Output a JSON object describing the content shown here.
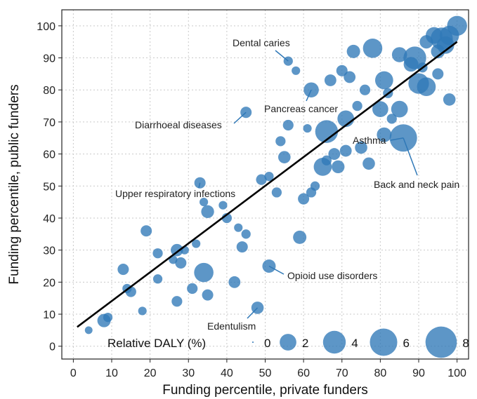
{
  "chart_data": {
    "type": "scatter",
    "xlabel": "Funding percentile, private funders",
    "ylabel": "Funding percentile, public funders",
    "xlim": [
      -3,
      103
    ],
    "ylim": [
      -4,
      105
    ],
    "xticks": [
      0,
      10,
      20,
      30,
      40,
      50,
      60,
      70,
      80,
      90,
      100
    ],
    "yticks": [
      0,
      10,
      20,
      30,
      40,
      50,
      60,
      70,
      80,
      90,
      100
    ],
    "grid": true,
    "point_color": "#2f78b7",
    "fit_line": {
      "x": [
        1,
        100
      ],
      "y": [
        6,
        95
      ]
    },
    "points": [
      {
        "x": 100,
        "y": 100,
        "daly": 3.0
      },
      {
        "x": 98,
        "y": 97,
        "daly": 2.8
      },
      {
        "x": 96,
        "y": 96,
        "daly": 3.8
      },
      {
        "x": 94,
        "y": 97,
        "daly": 2.0
      },
      {
        "x": 97,
        "y": 94,
        "daly": 2.2
      },
      {
        "x": 95,
        "y": 92,
        "daly": 1.3
      },
      {
        "x": 92,
        "y": 95,
        "daly": 1.2
      },
      {
        "x": 89,
        "y": 90,
        "daly": 4.0
      },
      {
        "x": 88,
        "y": 88,
        "daly": 1.5
      },
      {
        "x": 85,
        "y": 91,
        "daly": 1.6
      },
      {
        "x": 78,
        "y": 93,
        "daly": 2.8
      },
      {
        "x": 73,
        "y": 92,
        "daly": 1.2
      },
      {
        "x": 81,
        "y": 83,
        "daly": 2.4
      },
      {
        "x": 90,
        "y": 82,
        "daly": 3.2
      },
      {
        "x": 92,
        "y": 81,
        "daly": 2.6
      },
      {
        "x": 91,
        "y": 87,
        "daly": 0.6
      },
      {
        "x": 95,
        "y": 85,
        "daly": 0.8
      },
      {
        "x": 98,
        "y": 77,
        "daly": 1.0
      },
      {
        "x": 70,
        "y": 86,
        "daly": 0.8
      },
      {
        "x": 72,
        "y": 84,
        "daly": 0.9
      },
      {
        "x": 67,
        "y": 83,
        "daly": 0.9
      },
      {
        "x": 62,
        "y": 80,
        "daly": 1.6
      },
      {
        "x": 80,
        "y": 74,
        "daly": 1.8
      },
      {
        "x": 85,
        "y": 74,
        "daly": 2.0
      },
      {
        "x": 76,
        "y": 80,
        "daly": 0.7
      },
      {
        "x": 82,
        "y": 79,
        "daly": 0.6
      },
      {
        "x": 74,
        "y": 75,
        "daly": 0.6
      },
      {
        "x": 71,
        "y": 71,
        "daly": 2.0
      },
      {
        "x": 66,
        "y": 67,
        "daly": 4.0
      },
      {
        "x": 86,
        "y": 65,
        "daly": 6.0
      },
      {
        "x": 81,
        "y": 66,
        "daly": 1.5
      },
      {
        "x": 83,
        "y": 71,
        "daly": 0.6
      },
      {
        "x": 75,
        "y": 62,
        "daly": 1.0
      },
      {
        "x": 71,
        "y": 61,
        "daly": 0.9
      },
      {
        "x": 68,
        "y": 60,
        "daly": 0.9
      },
      {
        "x": 65,
        "y": 56,
        "daly": 2.4
      },
      {
        "x": 66,
        "y": 58,
        "daly": 0.6
      },
      {
        "x": 69,
        "y": 56,
        "daly": 1.1
      },
      {
        "x": 77,
        "y": 57,
        "daly": 1.0
      },
      {
        "x": 56,
        "y": 69,
        "daly": 0.7
      },
      {
        "x": 54,
        "y": 64,
        "daly": 0.6
      },
      {
        "x": 55,
        "y": 59,
        "daly": 1.0
      },
      {
        "x": 51,
        "y": 53,
        "daly": 0.5
      },
      {
        "x": 53,
        "y": 48,
        "daly": 0.6
      },
      {
        "x": 49,
        "y": 52,
        "daly": 0.7
      },
      {
        "x": 62,
        "y": 48,
        "daly": 0.6
      },
      {
        "x": 63,
        "y": 50,
        "daly": 0.5
      },
      {
        "x": 60,
        "y": 46,
        "daly": 0.8
      },
      {
        "x": 35,
        "y": 42,
        "daly": 1.1
      },
      {
        "x": 39,
        "y": 44,
        "daly": 0.4
      },
      {
        "x": 40,
        "y": 40,
        "daly": 0.6
      },
      {
        "x": 34,
        "y": 45,
        "daly": 0.4
      },
      {
        "x": 45,
        "y": 35,
        "daly": 0.5
      },
      {
        "x": 44,
        "y": 31,
        "daly": 0.8
      },
      {
        "x": 43,
        "y": 37,
        "daly": 0.4
      },
      {
        "x": 59,
        "y": 34,
        "daly": 1.2
      },
      {
        "x": 42,
        "y": 20,
        "daly": 0.9
      },
      {
        "x": 35,
        "y": 16,
        "daly": 0.8
      },
      {
        "x": 31,
        "y": 18,
        "daly": 0.7
      },
      {
        "x": 34,
        "y": 23,
        "daly": 2.8
      },
      {
        "x": 27,
        "y": 30,
        "daly": 1.0
      },
      {
        "x": 28,
        "y": 26,
        "daly": 0.8
      },
      {
        "x": 29,
        "y": 30,
        "daly": 0.4
      },
      {
        "x": 32,
        "y": 32,
        "daly": 0.4
      },
      {
        "x": 22,
        "y": 29,
        "daly": 0.6
      },
      {
        "x": 26,
        "y": 27,
        "daly": 0.4
      },
      {
        "x": 19,
        "y": 36,
        "daly": 0.8
      },
      {
        "x": 22,
        "y": 21,
        "daly": 0.5
      },
      {
        "x": 27,
        "y": 14,
        "daly": 0.7
      },
      {
        "x": 18,
        "y": 11,
        "daly": 0.4
      },
      {
        "x": 15,
        "y": 17,
        "daly": 0.7
      },
      {
        "x": 14,
        "y": 18,
        "daly": 0.5
      },
      {
        "x": 13,
        "y": 24,
        "daly": 0.8
      },
      {
        "x": 8,
        "y": 8,
        "daly": 1.2
      },
      {
        "x": 9,
        "y": 9,
        "daly": 0.5
      },
      {
        "x": 4,
        "y": 5,
        "daly": 0.3
      },
      {
        "x": 51,
        "y": 25,
        "daly": 1.2
      },
      {
        "x": 48,
        "y": 12,
        "daly": 1.0
      },
      {
        "x": 45,
        "y": 73,
        "daly": 0.8
      },
      {
        "x": 56,
        "y": 89,
        "daly": 0.5
      },
      {
        "x": 33,
        "y": 51,
        "daly": 0.8
      },
      {
        "x": 61,
        "y": 68,
        "daly": 0.4
      },
      {
        "x": 58,
        "y": 86,
        "daly": 0.4
      }
    ],
    "annotations": [
      {
        "text": "Dental caries"
      },
      {
        "text": "Pancreas cancer"
      },
      {
        "text": "Diarrhoeal diseases"
      },
      {
        "text": "Asthma"
      },
      {
        "text": "Back and neck pain"
      },
      {
        "text": "Upper respiratory infections"
      },
      {
        "text": "Opioid use disorders"
      },
      {
        "text": "Edentulism"
      }
    ],
    "legend": {
      "title": "Relative DALY (%)",
      "values": [
        0,
        2,
        4,
        6,
        8
      ],
      "labels": [
        "0",
        "2",
        "4",
        "6",
        "8"
      ]
    }
  }
}
